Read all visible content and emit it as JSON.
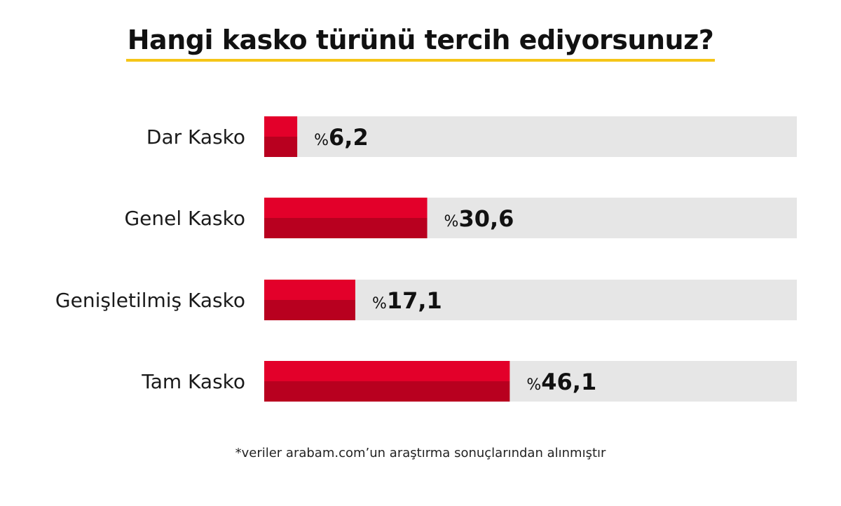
{
  "title": "Hangi kasko türünü tercih ediyorsunuz?",
  "footnote": "*veriler arabam.com’un araştırma sonuçlarından alınmıştır",
  "colors": {
    "bar_top": "#e3002a",
    "bar_bottom": "#b8001f",
    "track": "#e6e6e6",
    "title_underline": "#f5c518",
    "text": "#1a1a1a"
  },
  "chart_data": {
    "type": "bar",
    "orientation": "horizontal",
    "categories": [
      "Dar Kasko",
      "Genel Kasko",
      "Genişletilmiş Kasko",
      "Tam Kasko"
    ],
    "values": [
      6.2,
      30.6,
      17.1,
      46.1
    ],
    "value_labels": [
      "6,2",
      "30,6",
      "17,1",
      "46,1"
    ],
    "value_prefix": "%",
    "xlim": [
      0,
      100
    ],
    "grid": false,
    "legend": "none"
  }
}
